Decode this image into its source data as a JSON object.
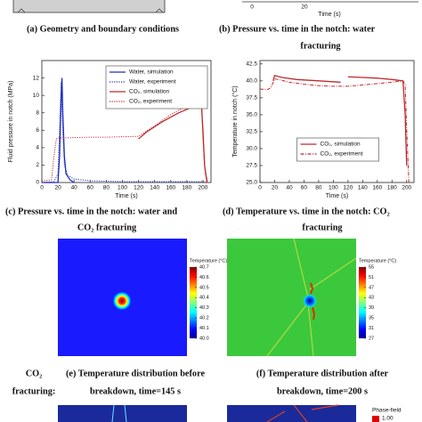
{
  "top_strip": {
    "tick_labels": [
      "0",
      "20"
    ],
    "xlabel": "Time (s)"
  },
  "captions": {
    "a": [
      "(a)  Geometry and boundary conditions"
    ],
    "b": [
      "(b) Pressure vs. time in the notch: water",
      "fracturing"
    ],
    "c": [
      "(c) Pressure vs. time in the notch: water and",
      "CO₂ fracturing"
    ],
    "d": [
      "(d) Temperature vs. time in the notch: CO₂",
      "fracturing"
    ],
    "e": [
      "(e) Temperature distribution before",
      "breakdown, time=145 s"
    ],
    "f": [
      "(f) Temperature distribution after",
      "breakdown, time=200 s"
    ]
  },
  "side_label": [
    "CO₂",
    "fracturing:"
  ],
  "chart_data": [
    {
      "type": "line",
      "xlabel": "Time (s)",
      "ylabel": "Fluid pressure in notch (MPa)",
      "xlim": [
        0,
        210
      ],
      "ylim": [
        0,
        14
      ],
      "xticks": [
        0,
        20,
        40,
        60,
        80,
        100,
        120,
        140,
        160,
        180,
        200
      ],
      "yticks": [
        0,
        2,
        4,
        6,
        8,
        10,
        12
      ],
      "legend": "upper right",
      "series": [
        {
          "name": "Water, simulation",
          "color": "#1f2fbf",
          "linestyle": "solid",
          "x": [
            0,
            20,
            22,
            24,
            25,
            26,
            28,
            30,
            35,
            40
          ],
          "values": [
            0,
            0,
            3,
            10,
            12,
            8,
            3,
            1,
            0.3,
            0
          ]
        },
        {
          "name": "Water, experiment",
          "color": "#1f2fbf",
          "linestyle": "dotted",
          "x": [
            0,
            15,
            20,
            22,
            24,
            26,
            28,
            32,
            40,
            60,
            100,
            150,
            200,
            205
          ],
          "values": [
            0,
            0.1,
            1,
            6,
            11.5,
            6,
            2,
            0.8,
            0.4,
            0.2,
            0.1,
            0.1,
            0.1,
            0
          ]
        },
        {
          "name": "CO₂, simulation",
          "color": "#c0282d",
          "linestyle": "solid",
          "x": [
            120,
            130,
            140,
            150,
            160,
            170,
            180,
            190,
            195,
            198,
            200,
            202,
            205
          ],
          "values": [
            5,
            5.8,
            6.4,
            7,
            7.5,
            8,
            8.4,
            8.8,
            9,
            9.2,
            6,
            2,
            0
          ]
        },
        {
          "name": "CO₂, experiment",
          "color": "#c0282d",
          "linestyle": "dotted",
          "x": [
            0,
            12,
            15,
            18,
            20,
            40,
            60,
            80,
            100,
            120,
            140,
            160,
            180,
            195,
            198,
            200,
            203,
            206
          ],
          "values": [
            0.2,
            0.3,
            3,
            5,
            5.1,
            5.15,
            5.2,
            5.2,
            5.25,
            5.3,
            6.5,
            7.8,
            8.8,
            9.2,
            9.3,
            5,
            1,
            0.2
          ]
        }
      ]
    },
    {
      "type": "line",
      "xlabel": "Time (s)",
      "ylabel": "Temperature in notch (°C)",
      "xlim": [
        0,
        210
      ],
      "ylim": [
        25,
        43
      ],
      "xticks": [
        0,
        20,
        40,
        60,
        80,
        100,
        120,
        140,
        160,
        180,
        200
      ],
      "yticks": [
        {
          "value": 25,
          "label": "25.0"
        },
        {
          "value": 27.5,
          "label": "27.5"
        },
        {
          "value": 30,
          "label": "30.0"
        },
        {
          "value": 32.5,
          "label": "32.5"
        },
        {
          "value": 35,
          "label": "35.0"
        },
        {
          "value": 37.5,
          "label": "37.5"
        },
        {
          "value": 40,
          "label": "40.0"
        },
        {
          "value": 42.5,
          "label": "42.5"
        }
      ],
      "legend": "lower center",
      "series": [
        {
          "name": "CO₂, simulation",
          "color": "#c0282d",
          "linestyle": "solid",
          "x": [
            18,
            20,
            30,
            50,
            80,
            110,
            119,
            120,
            140,
            160,
            180,
            195,
            198,
            200
          ],
          "values": [
            40,
            40.8,
            40.5,
            40.2,
            40,
            39.8,
            null,
            40.6,
            40.5,
            40.4,
            40.2,
            40,
            35,
            27.5
          ]
        },
        {
          "name": "CO₂, experiment",
          "color": "#c0282d",
          "linestyle": "dashdot",
          "x": [
            0,
            10,
            15,
            20,
            25,
            40,
            60,
            80,
            100,
            120,
            140,
            160,
            180,
            195,
            198,
            200,
            203
          ],
          "values": [
            38.8,
            38.7,
            39,
            40.3,
            40.2,
            39.8,
            39.5,
            39.3,
            39.2,
            39.2,
            39.4,
            39.6,
            39.8,
            40,
            39.5,
            33,
            25
          ]
        }
      ]
    }
  ],
  "colorbars": [
    {
      "title": "Temperature (°C)",
      "lim": [
        40.0,
        40.7
      ],
      "ticks": [
        {
          "value": 40.0,
          "label": "40.0"
        },
        40.1,
        40.2,
        40.3,
        40.4,
        40.5,
        40.6,
        40.7
      ]
    },
    {
      "title": "Temperature (°C)",
      "lim": [
        27,
        55
      ],
      "ticks": [
        27,
        31,
        35,
        39,
        43,
        47,
        51,
        55
      ]
    }
  ],
  "bottom_strip": {
    "colorbar_title": "Phase-field",
    "tick": "1.00"
  }
}
